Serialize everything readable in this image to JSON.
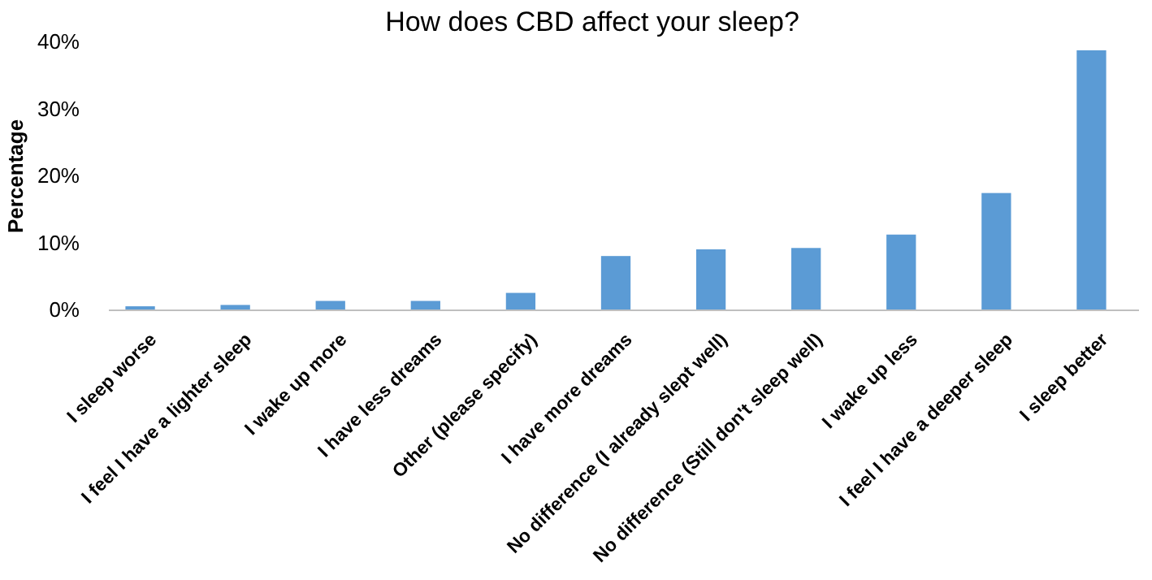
{
  "chart_data": {
    "type": "bar",
    "title": "How does CBD affect your sleep?",
    "ylabel": "Percentage",
    "categories": [
      "I sleep worse",
      "I feel I have a lighter sleep",
      "I wake up more",
      "I have less dreams",
      "Other (please specify)",
      "I have more dreams",
      "No difference (I already slept well)",
      "No difference (Still don't sleep well)",
      "I wake up less",
      "I feel I have a deeper sleep",
      "I sleep better"
    ],
    "values": [
      0.6,
      0.8,
      1.4,
      1.4,
      2.6,
      8.1,
      9.1,
      9.3,
      11.3,
      17.5,
      38.8
    ],
    "color": "#5b9bd5",
    "ylim": [
      0,
      40
    ],
    "yticks": [
      {
        "value": 0,
        "label": "0%"
      },
      {
        "value": 10,
        "label": "10%"
      },
      {
        "value": 20,
        "label": "20%"
      },
      {
        "value": 30,
        "label": "30%"
      },
      {
        "value": 40,
        "label": "40%"
      }
    ],
    "grid": false
  }
}
